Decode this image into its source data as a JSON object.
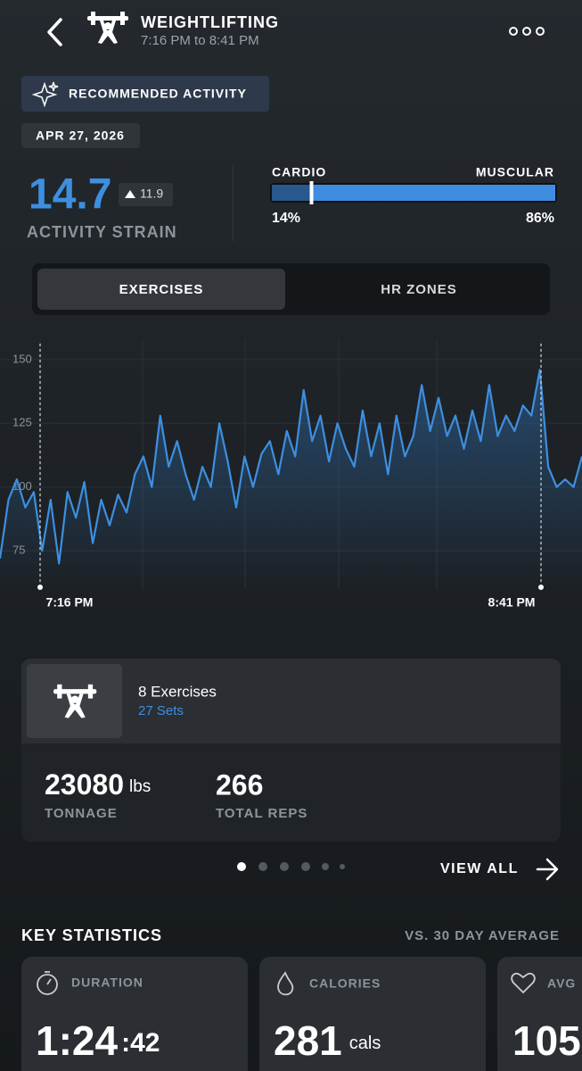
{
  "header": {
    "title": "WEIGHTLIFTING",
    "subtitle": "7:16 PM to 8:41 PM"
  },
  "badge": "RECOMMENDED ACTIVITY",
  "date": "APR 27, 2026",
  "strain": {
    "value": "14.7",
    "change": "11.9",
    "label": "ACTIVITY STRAIN"
  },
  "split": {
    "left_title": "CARDIO",
    "right_title": "MUSCULAR",
    "cardio": {
      "value": 14,
      "label": "14%"
    },
    "muscular": {
      "value": 86,
      "label": "86%"
    }
  },
  "tabs": [
    "EXERCISES",
    "HR ZONES"
  ],
  "chart_data": {
    "type": "line",
    "color": "#3d8fe0",
    "values": [
      72,
      95,
      103,
      92,
      98,
      75,
      95,
      70,
      98,
      88,
      102,
      78,
      95,
      85,
      97,
      90,
      105,
      112,
      100,
      128,
      108,
      118,
      105,
      95,
      108,
      100,
      125,
      110,
      92,
      112,
      100,
      113,
      118,
      105,
      122,
      112,
      138,
      118,
      128,
      110,
      125,
      115,
      108,
      130,
      112,
      125,
      105,
      128,
      112,
      120,
      140,
      122,
      135,
      120,
      128,
      115,
      130,
      118,
      140,
      120,
      128,
      122,
      132,
      128,
      146,
      108,
      100,
      103,
      100,
      112
    ],
    "ylim": [
      60,
      158
    ],
    "yticks": [
      75,
      100,
      125,
      150
    ],
    "grid": true,
    "start_label": "7:16 PM",
    "end_label": "8:41 PM"
  },
  "exercises": {
    "count": "8 Exercises",
    "sets": "27 Sets",
    "tonnage": "23080",
    "tonnage_unit": "lbs",
    "tonnage_label": "TONNAGE",
    "reps": "266",
    "reps_label": "TOTAL REPS"
  },
  "view_all": "VIEW ALL",
  "key_statistics": {
    "title": "KEY STATISTICS",
    "comparison": "VS. 30 DAY AVERAGE",
    "cards": [
      {
        "label": "DURATION",
        "value": "1:24",
        "suffix": ":42"
      },
      {
        "label": "CALORIES",
        "value": "281",
        "suffix": "cals"
      },
      {
        "label": "AVG",
        "value": "105"
      }
    ]
  }
}
